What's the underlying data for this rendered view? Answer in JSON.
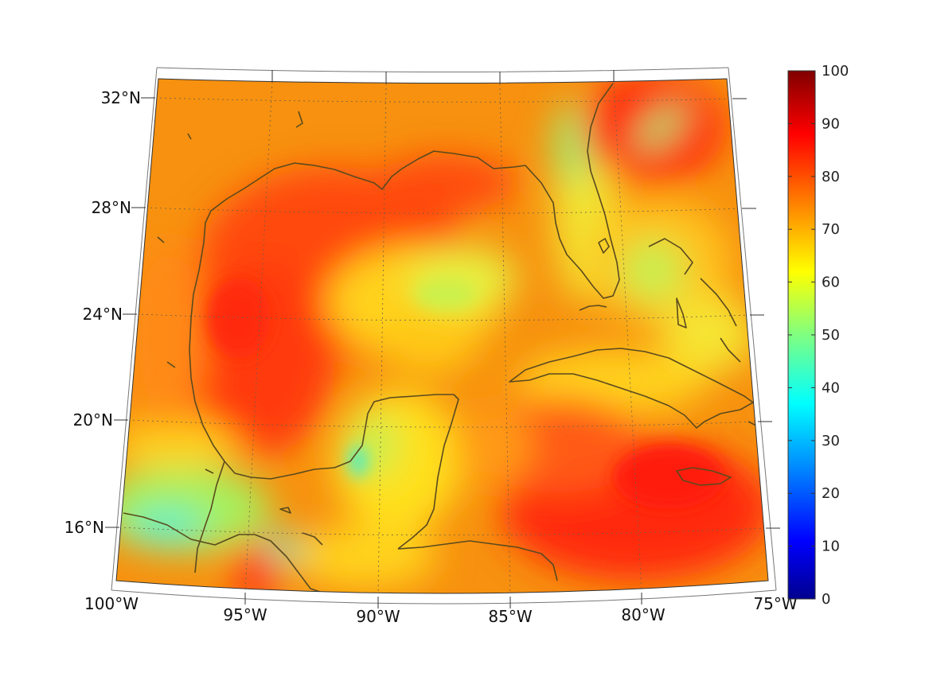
{
  "map": {
    "lat_labels": [
      {
        "lat": 32,
        "label": "32°N"
      },
      {
        "lat": 28,
        "label": "28°N"
      },
      {
        "lat": 24,
        "label": "24°N"
      },
      {
        "lat": 20,
        "label": "20°N"
      },
      {
        "lat": 16,
        "label": "16°N"
      }
    ],
    "lon_labels": [
      {
        "lon": -100,
        "label": "100°W"
      },
      {
        "lon": -95,
        "label": "95°W"
      },
      {
        "lon": -90,
        "label": "90°W"
      },
      {
        "lon": -85,
        "label": "85°W"
      },
      {
        "lon": -80,
        "label": "80°W"
      },
      {
        "lon": -75,
        "label": "75°W"
      }
    ],
    "colors": {
      "coastline": "#5a4a1e",
      "graticule": "#7a6a50",
      "frame": "#333333"
    }
  },
  "colorbar": {
    "min": 0,
    "max": 100,
    "tick_labels": [
      "0",
      "10",
      "20",
      "30",
      "40",
      "50",
      "60",
      "70",
      "80",
      "90",
      "100"
    ],
    "colormap": [
      "#00008f",
      "#0000ff",
      "#0080ff",
      "#00ffff",
      "#80ff80",
      "#ffff00",
      "#ff8000",
      "#ff0000",
      "#800000"
    ]
  }
}
